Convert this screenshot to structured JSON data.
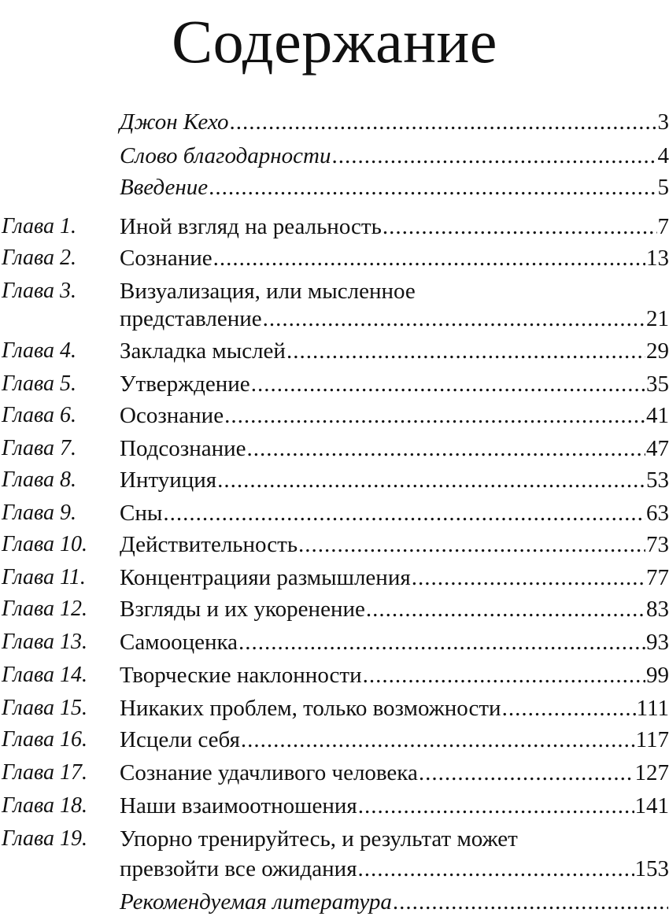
{
  "title": "Содержание",
  "entries": [
    {
      "label": "",
      "title": "Джон Кехо",
      "page": "3",
      "italic": true
    },
    {
      "label": "",
      "title": "Слово благодарности",
      "page": "4",
      "italic": true
    },
    {
      "label": "",
      "title": "Введение",
      "page": "5",
      "italic": true
    },
    {
      "label": "Глава 1.",
      "title": "Иной взгляд на реальность",
      "page": "7"
    },
    {
      "label": "Глава 2.",
      "title": "Сознание",
      "page": "13"
    },
    {
      "label": "Глава 3.",
      "title": "Визуализация, или мысленное",
      "page": ""
    },
    {
      "label": "",
      "title": "представление",
      "page": "21"
    },
    {
      "label": "Глава 4.",
      "title": "Закладка мыслей",
      "page": "29"
    },
    {
      "label": "Глава 5.",
      "title": "Утверждение",
      "page": "35"
    },
    {
      "label": "Глава 6.",
      "title": "Осознание",
      "page": "41"
    },
    {
      "label": "Глава 7.",
      "title": "Подсознание",
      "page": "47"
    },
    {
      "label": "Глава 8.",
      "title": "Интуиция",
      "page": "53"
    },
    {
      "label": "Глава 9.",
      "title": "Сны",
      "page": "63"
    },
    {
      "label": "Глава 10.",
      "title": "Действительность",
      "page": "73"
    },
    {
      "label": "Глава 11.",
      "title": "Концентрацияи размышления",
      "page": "77"
    },
    {
      "label": "Глава 12.",
      "title": "Взгляды и их укоренение",
      "page": "83"
    },
    {
      "label": "Глава 13.",
      "title": "Самооценка",
      "page": "93"
    },
    {
      "label": "Глава 14.",
      "title": "Творческие наклонности",
      "page": "99"
    },
    {
      "label": "Глава 15.",
      "title": "Никаких проблем, только возможности",
      "page": "111"
    },
    {
      "label": "Глава 16.",
      "title": "Исцели себя",
      "page": "117"
    },
    {
      "label": "Глава 17.",
      "title": "Сознание удачливого человека",
      "page": "127"
    },
    {
      "label": "Глава 18.",
      "title": "Наши взаимоотношения",
      "page": "141"
    },
    {
      "label": "Глава 19.",
      "title": "Упорно тренируйтесь, и результат может",
      "page": ""
    },
    {
      "label": "",
      "title": "превзойти все ожидания",
      "page": "153"
    },
    {
      "label": "",
      "title": "Рекомендуемая литература",
      "page": "",
      "italic": true,
      "leader": true
    }
  ]
}
